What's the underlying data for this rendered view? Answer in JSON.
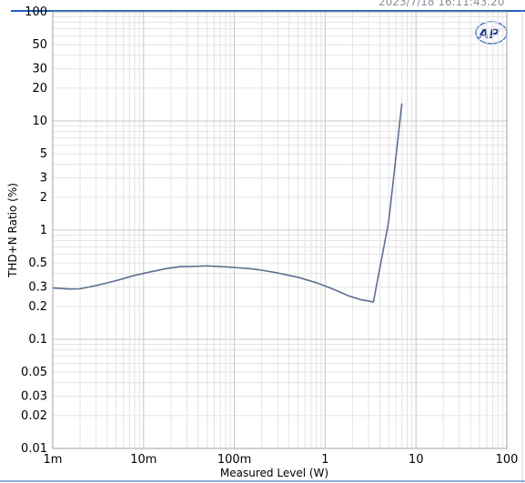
{
  "header": {
    "clipped_text": "2023/7/18 16:11:43.20"
  },
  "logo": {
    "text": "AP",
    "color": "#1f3f8f"
  },
  "colors": {
    "accent_line": "#1f5fbf",
    "grid_major": "#c8c8c8",
    "grid_minor": "#e4e4e4",
    "series": "#5b6f8f"
  },
  "chart_data": {
    "type": "line",
    "title": "",
    "xlabel": "Measured Level (W)",
    "ylabel": "THD+N Ratio (%)",
    "x_scale": "log",
    "y_scale": "log",
    "xlim": [
      0.001,
      100
    ],
    "ylim": [
      0.01,
      100
    ],
    "x_ticks": [
      {
        "value": 0.001,
        "label": "1m"
      },
      {
        "value": 0.01,
        "label": "10m"
      },
      {
        "value": 0.1,
        "label": "100m"
      },
      {
        "value": 1,
        "label": "1"
      },
      {
        "value": 10,
        "label": "10"
      },
      {
        "value": 100,
        "label": "100"
      }
    ],
    "y_ticks": [
      {
        "value": 100,
        "label": "100"
      },
      {
        "value": 50,
        "label": "50"
      },
      {
        "value": 30,
        "label": "30"
      },
      {
        "value": 20,
        "label": "20"
      },
      {
        "value": 10,
        "label": "10"
      },
      {
        "value": 5,
        "label": "5"
      },
      {
        "value": 3,
        "label": "3"
      },
      {
        "value": 2,
        "label": "2"
      },
      {
        "value": 1,
        "label": "1"
      },
      {
        "value": 0.5,
        "label": "0.5"
      },
      {
        "value": 0.3,
        "label": "0.3"
      },
      {
        "value": 0.2,
        "label": "0.2"
      },
      {
        "value": 0.1,
        "label": "0.1"
      },
      {
        "value": 0.05,
        "label": "0.05"
      },
      {
        "value": 0.03,
        "label": "0.03"
      },
      {
        "value": 0.02,
        "label": "0.02"
      },
      {
        "value": 0.01,
        "label": "0.01"
      }
    ],
    "grid": true,
    "legend": "none",
    "series": [
      {
        "x": [
          0.001,
          0.0015,
          0.002,
          0.003,
          0.005,
          0.008,
          0.012,
          0.018,
          0.025,
          0.035,
          0.05,
          0.07,
          0.1,
          0.15,
          0.2,
          0.3,
          0.5,
          0.8,
          1.2,
          1.8,
          2.5,
          3.4,
          5.0,
          7.0
        ],
        "y": [
          0.295,
          0.289,
          0.29,
          0.31,
          0.345,
          0.385,
          0.415,
          0.445,
          0.462,
          0.465,
          0.47,
          0.463,
          0.455,
          0.443,
          0.43,
          0.405,
          0.37,
          0.33,
          0.29,
          0.25,
          0.23,
          0.22,
          1.2,
          14.5
        ]
      }
    ]
  }
}
